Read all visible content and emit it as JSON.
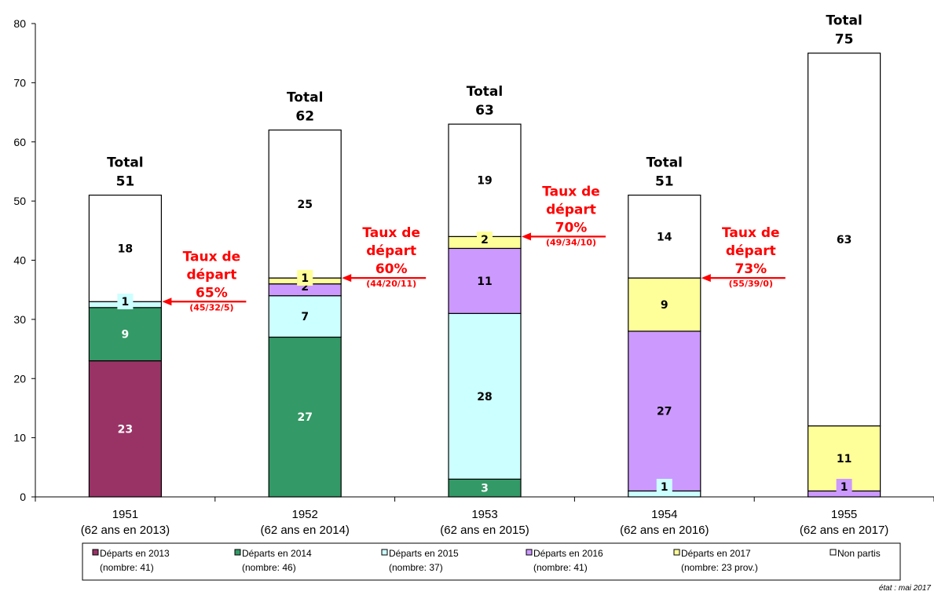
{
  "chart_data": {
    "type": "bar",
    "stacked": true,
    "ylim": [
      0,
      80
    ],
    "yticks": [
      0,
      10,
      20,
      30,
      40,
      50,
      60,
      70,
      80
    ],
    "grid": false,
    "legend_position": "bottom",
    "categories": [
      [
        "1951",
        "(62 ans en 2013)"
      ],
      [
        "1952",
        "(62 ans en 2014)"
      ],
      [
        "1953",
        "(62 ans en 2015)"
      ],
      [
        "1954",
        "(62 ans en 2016)"
      ],
      [
        "1955",
        "(62 ans en 2017)"
      ]
    ],
    "series": [
      {
        "name": "Départs en 2013",
        "sub": "(nombre: 41)",
        "color": "#993366",
        "label_color": "#ffffff",
        "values": [
          23,
          0,
          0,
          0,
          0
        ]
      },
      {
        "name": "Départs en 2014",
        "sub": "(nombre: 46)",
        "color": "#339966",
        "label_color": "#ffffff",
        "values": [
          9,
          27,
          3,
          0,
          0
        ]
      },
      {
        "name": "Départs en 2015",
        "sub": "(nombre: 37)",
        "color": "#ccffff",
        "label_color": "#000000",
        "values": [
          1,
          7,
          28,
          1,
          0
        ]
      },
      {
        "name": "Départs en 2016",
        "sub": "(nombre: 41)",
        "color": "#cc99ff",
        "label_color": "#000000",
        "values": [
          0,
          2,
          11,
          27,
          1
        ]
      },
      {
        "name": "Départs en 2017",
        "sub": "(nombre: 23 prov.)",
        "color": "#ffff99",
        "label_color": "#000000",
        "values": [
          0,
          1,
          2,
          9,
          11
        ]
      },
      {
        "name": "Non partis",
        "sub": "",
        "color": "#ffffff",
        "label_color": "#000000",
        "values": [
          18,
          25,
          19,
          14,
          63
        ]
      }
    ],
    "totals_label": "Total",
    "totals": [
      51,
      62,
      63,
      51,
      75
    ],
    "annotations": [
      {
        "category_index": 0,
        "lines": [
          "Taux de",
          "départ"
        ],
        "rate": "65%",
        "detail": "(45/32/5)"
      },
      {
        "category_index": 1,
        "lines": [
          "Taux de",
          "départ"
        ],
        "rate": "60%",
        "detail": "(44/20/11)"
      },
      {
        "category_index": 2,
        "lines": [
          "Taux de",
          "départ"
        ],
        "rate": "70%",
        "detail": "(49/34/10)"
      },
      {
        "category_index": 3,
        "lines": [
          "Taux de",
          "départ"
        ],
        "rate": "73%",
        "detail": "(55/39/0)"
      }
    ],
    "note": "état : mai 2017"
  }
}
